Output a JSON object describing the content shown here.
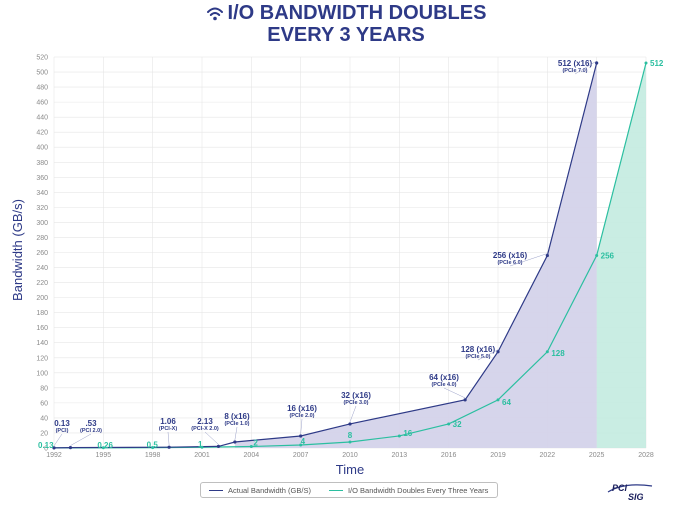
{
  "title": {
    "line1": "I/O BANDWIDTH DOUBLES",
    "line2": "EVERY 3 YEARS"
  },
  "logo": {
    "text_top": "PCI",
    "text_bottom": "SIG"
  },
  "colors": {
    "actual": "#2e3a87",
    "projected": "#2bbfa0",
    "actual_fill": "#d4d3ea",
    "projected_fill": "#c3ebe0",
    "grid": "#e6e6e6"
  },
  "chart_data": {
    "type": "area",
    "xlabel": "Time",
    "ylabel": "Bandwidth (GB/s)",
    "xlim": [
      1992,
      2028
    ],
    "ylim": [
      0,
      520
    ],
    "grid": true,
    "legend_position": "bottom-center",
    "x_ticks": [
      "1992",
      "1995",
      "1998",
      "2001",
      "2004",
      "2007",
      "2010",
      "2013",
      "2016",
      "2019",
      "2022",
      "2025",
      "2028"
    ],
    "y_ticks": [
      "0",
      "20",
      "40",
      "60",
      "80",
      "100",
      "120",
      "140",
      "160",
      "180",
      "200",
      "220",
      "240",
      "260",
      "280",
      "300",
      "320",
      "340",
      "360",
      "380",
      "400",
      "420",
      "440",
      "460",
      "480",
      "500",
      "520"
    ],
    "series": [
      {
        "name": "Actual Bandwidth (GB/S)",
        "points": [
          {
            "x": 1992,
            "y": 0.13,
            "label": "0.13",
            "sub": "(PCI)"
          },
          {
            "x": 1993,
            "y": 0.53,
            "label": ".53",
            "sub": "(PCI 2.0)"
          },
          {
            "x": 1999,
            "y": 1.06,
            "label": "1.06",
            "sub": "(PCI-X)"
          },
          {
            "x": 2002,
            "y": 2.13,
            "label": "2.13",
            "sub": "(PCI-X 2.0)"
          },
          {
            "x": 2003,
            "y": 8,
            "label": "8 (x16)",
            "sub": "(PCIe 1.0)"
          },
          {
            "x": 2007,
            "y": 16,
            "label": "16 (x16)",
            "sub": "(PCIe 2.0)"
          },
          {
            "x": 2010,
            "y": 32,
            "label": "32 (x16)",
            "sub": "(PCIe 3.0)"
          },
          {
            "x": 2017,
            "y": 64,
            "label": "64 (x16)",
            "sub": "(PCIe 4.0)"
          },
          {
            "x": 2019,
            "y": 128,
            "label": "128 (x16)",
            "sub": "(PCIe 5.0)"
          },
          {
            "x": 2022,
            "y": 256,
            "label": "256 (x16)",
            "sub": "(PCIe 6.0)"
          },
          {
            "x": 2025,
            "y": 512,
            "label": "512 (x16)",
            "sub": "(PCIe 7.0)"
          }
        ]
      },
      {
        "name": "I/O Bandwidth Doubles Every Three Years",
        "points": [
          {
            "x": 1992,
            "y": 0.13,
            "label": "0.13"
          },
          {
            "x": 1995,
            "y": 0.26,
            "label": "0.26"
          },
          {
            "x": 1998,
            "y": 0.5,
            "label": "0.5"
          },
          {
            "x": 2001,
            "y": 1,
            "label": "1"
          },
          {
            "x": 2004,
            "y": 2,
            "label": "2"
          },
          {
            "x": 2007,
            "y": 4,
            "label": "4"
          },
          {
            "x": 2010,
            "y": 8,
            "label": "8"
          },
          {
            "x": 2013,
            "y": 16,
            "label": "16"
          },
          {
            "x": 2016,
            "y": 32,
            "label": "32"
          },
          {
            "x": 2019,
            "y": 64,
            "label": "64"
          },
          {
            "x": 2022,
            "y": 128,
            "label": "128"
          },
          {
            "x": 2025,
            "y": 256,
            "label": "256"
          },
          {
            "x": 2028,
            "y": 512,
            "label": "512"
          }
        ]
      }
    ]
  }
}
